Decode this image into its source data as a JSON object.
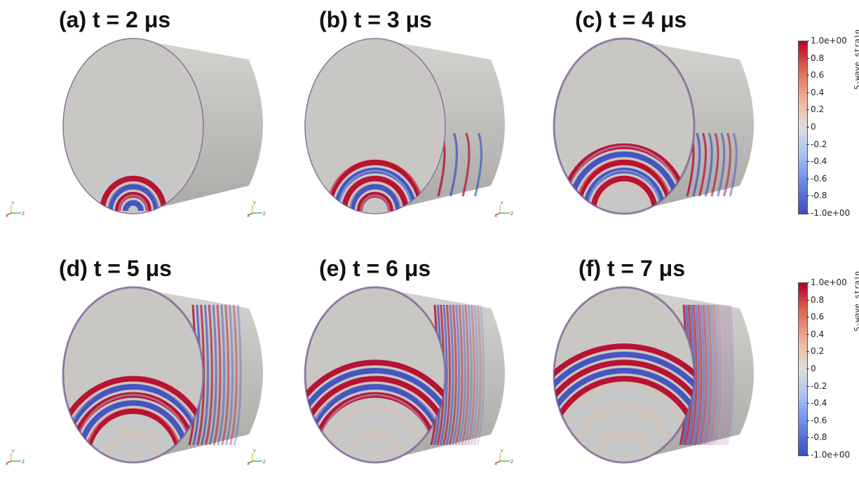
{
  "panels": [
    {
      "label": "(a) t = 2 μs",
      "stage": 2
    },
    {
      "label": "(b) t = 3 μs",
      "stage": 3
    },
    {
      "label": "(c) t = 4 μs",
      "stage": 4
    },
    {
      "label": "(d) t = 5 μs",
      "stage": 5
    },
    {
      "label": "(e) t = 6 μs",
      "stage": 6
    },
    {
      "label": "(f) t = 7 μs",
      "stage": 7
    }
  ],
  "colorbar": {
    "title": "S-wave strain",
    "ticks": [
      "1.0e+00",
      "0.8",
      "0.6",
      "0.4",
      "0.2",
      "0",
      "-0.2",
      "-0.4",
      "-0.6",
      "-0.8",
      "-1.0e+00"
    ]
  },
  "axes": {
    "y": "Y",
    "x": "X",
    "z": "Z"
  },
  "colors": {
    "positive": "#b40426",
    "negative": "#3b4cc0",
    "neutral": "#dddddd",
    "cylinder": "#c9c9c9"
  }
}
